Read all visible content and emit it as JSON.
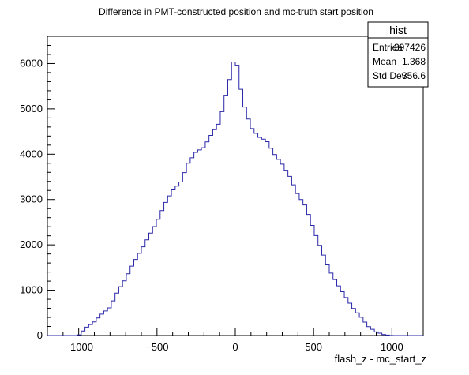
{
  "chart_data": {
    "type": "histogram",
    "title": "Difference in PMT-constructed position and mc-truth start position",
    "xlabel": "flash_z - mc_start_z",
    "ylabel": "",
    "xlim": [
      -1200,
      1200
    ],
    "ylim": [
      0,
      6600
    ],
    "x_ticks": [
      -1000,
      -500,
      0,
      500,
      1000
    ],
    "x_tick_labels": [
      "−1000",
      "−500",
      "0",
      "500",
      "1000"
    ],
    "y_ticks": [
      0,
      1000,
      2000,
      3000,
      4000,
      5000,
      6000
    ],
    "y_tick_labels": [
      "0",
      "1000",
      "2000",
      "3000",
      "4000",
      "5000",
      "6000"
    ],
    "line_color": "#2a27a8",
    "bin_width": 24,
    "series": [
      {
        "x": [
          -1000,
          -950,
          -900,
          -850,
          -800,
          -750,
          -700,
          -650,
          -600,
          -550,
          -500,
          -450,
          -400,
          -350,
          -300,
          -250,
          -200,
          -150,
          -100,
          -50,
          -25,
          0,
          25,
          50,
          100,
          150,
          200,
          250,
          300,
          350,
          400,
          450,
          500,
          550,
          600,
          650,
          700,
          750,
          800,
          850,
          900,
          950,
          1000
        ],
        "values": [
          0,
          180,
          300,
          480,
          620,
          980,
          1250,
          1600,
          1880,
          2200,
          2500,
          2900,
          3200,
          3370,
          3800,
          4050,
          4150,
          4450,
          4700,
          5450,
          5800,
          6250,
          5650,
          5150,
          4600,
          4380,
          4300,
          4000,
          3780,
          3500,
          3100,
          2850,
          2350,
          1900,
          1450,
          1150,
          880,
          620,
          420,
          200,
          80,
          20,
          0
        ]
      }
    ]
  },
  "stats_box": {
    "title": "hist",
    "rows": [
      {
        "label": "Entries",
        "value": "397426"
      },
      {
        "label": "Mean",
        "value": "1.368"
      },
      {
        "label": "Std Dev",
        "value": "356.6"
      }
    ]
  }
}
